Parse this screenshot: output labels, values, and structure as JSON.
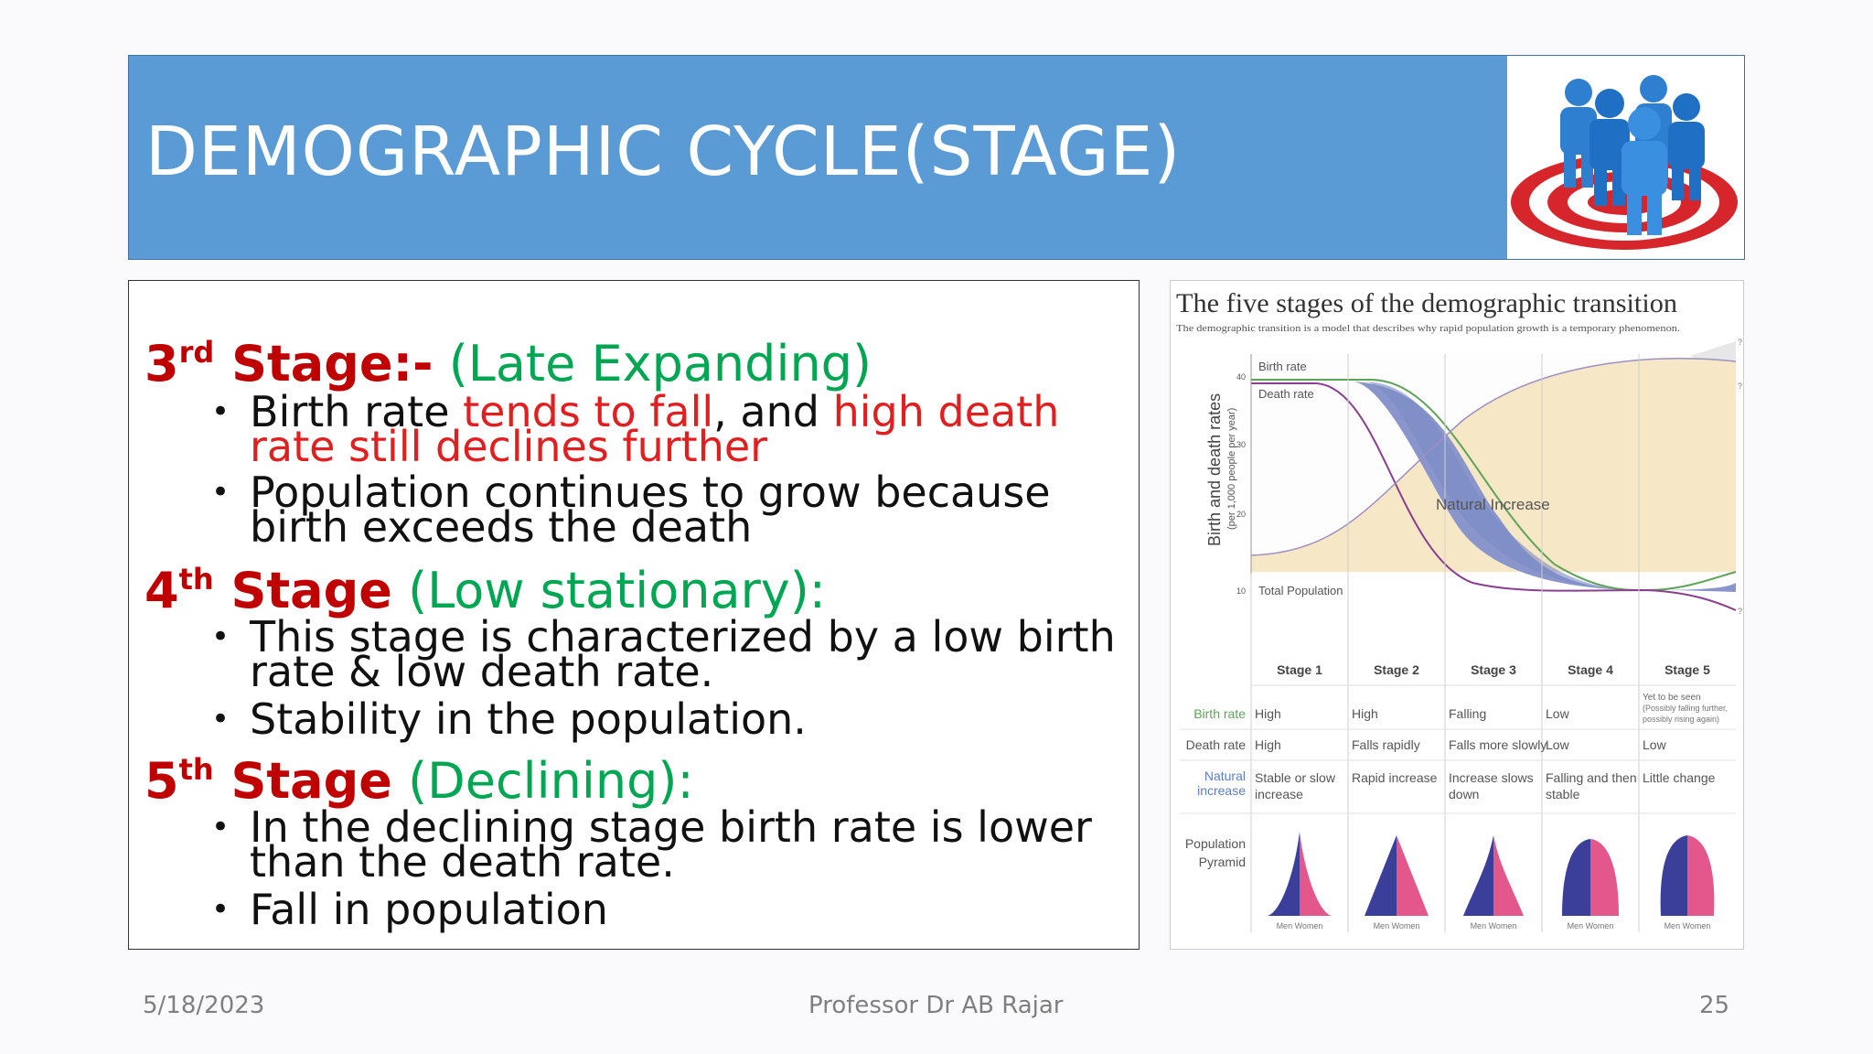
{
  "slide": {
    "title": "DEMOGRAPHIC CYCLE(STAGE)",
    "footer": {
      "date": "5/18/2023",
      "author": "Professor Dr AB Rajar",
      "page": "25"
    }
  },
  "colors": {
    "title_bg": "#5b9bd5",
    "stage_red": "#c00000",
    "stage_green": "#00a651",
    "highlight_red": "#e02020"
  },
  "stages": [
    {
      "num": "3",
      "suffix": "rd",
      "label": "Stage:-",
      "desc": "(Late Expanding)",
      "bullets": [
        [
          "Birth rate ",
          "tends to fall",
          ", and ",
          "high death rate still declines further"
        ],
        [
          "Population continues to grow because birth exceeds the death"
        ]
      ]
    },
    {
      "num": "4",
      "suffix": "th",
      "label": "Stage",
      "desc": "(Low stationary):",
      "bullets": [
        [
          "This stage is characterized by a low birth rate & low death rate."
        ],
        [
          "Stability in the population."
        ]
      ]
    },
    {
      "num": "5",
      "suffix": "th",
      "label": "Stage",
      "desc": "(Declining):",
      "bullets": [
        [
          "In the declining stage birth rate is lower than the death rate."
        ],
        [
          "Fall in population"
        ]
      ]
    }
  ],
  "bullet_char": "•",
  "figure": {
    "title": "The five stages of the demographic transition",
    "subtitle": "The demographic transition is a model that describes why rapid population growth is a temporary phenomenon.",
    "y_axis_label": "Birth and death rates",
    "y_axis_sublabel": "(per 1,000 people per year)",
    "y_ticks": [
      "40",
      "30",
      "20",
      "10"
    ],
    "series_labels": {
      "birth": "Birth rate",
      "death": "Death rate",
      "total": "Total Population",
      "natural": "Natural Increase"
    },
    "question_mark": "?",
    "stage_labels": [
      "Stage 1",
      "Stage 2",
      "Stage 3",
      "Stage 4",
      "Stage 5"
    ],
    "row_headers": {
      "birth": "Birth rate",
      "death": "Death rate",
      "natural_1": "Natural",
      "natural_2": "increase",
      "pyramid_1": "Population",
      "pyramid_2": "Pyramid"
    },
    "birth_row": [
      "High",
      "High",
      "Falling",
      "Low",
      "Yet to be seen"
    ],
    "birth_row_note": [
      "(Possibly falling further,",
      "possibly rising again)"
    ],
    "death_row": [
      "High",
      "Falls rapidly",
      "Falls more slowly",
      "Low",
      "Low"
    ],
    "natural_row": [
      [
        "Stable or slow",
        "increase"
      ],
      [
        "Rapid increase",
        ""
      ],
      [
        "Increase slows",
        "down"
      ],
      [
        "Falling and then",
        "stable"
      ],
      [
        "Little change",
        ""
      ]
    ],
    "pyramid_caption": "Men Women"
  }
}
